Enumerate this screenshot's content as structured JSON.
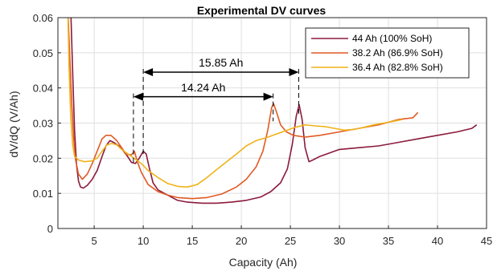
{
  "chart_data": {
    "type": "line",
    "title": "Experimental DV curves",
    "xlabel": "Capacity (Ah)",
    "ylabel": "dV/dQ (V/Ah)",
    "xlim": [
      1.3,
      45
    ],
    "ylim": [
      0,
      0.06
    ],
    "xticks": [
      5,
      10,
      15,
      20,
      25,
      30,
      35,
      40,
      45
    ],
    "yticks": [
      0,
      0.01,
      0.02,
      0.03,
      0.04,
      0.05,
      0.06
    ],
    "ytick_labels": [
      "0",
      "0.01",
      "0.02",
      "0.03",
      "0.04",
      "0.05",
      "0.06"
    ],
    "grid": true,
    "legend_position": "top-right",
    "series": [
      {
        "name": "44 Ah (100% SoH)",
        "color": "#8b1a3c",
        "points": [
          [
            2.6,
            0.063
          ],
          [
            2.8,
            0.045
          ],
          [
            3.0,
            0.028
          ],
          [
            3.2,
            0.018
          ],
          [
            3.4,
            0.0135
          ],
          [
            3.6,
            0.0118
          ],
          [
            3.9,
            0.0115
          ],
          [
            4.3,
            0.0123
          ],
          [
            4.8,
            0.014
          ],
          [
            5.3,
            0.0165
          ],
          [
            5.8,
            0.0205
          ],
          [
            6.2,
            0.0235
          ],
          [
            6.6,
            0.025
          ],
          [
            7.0,
            0.0245
          ],
          [
            7.5,
            0.0235
          ],
          [
            8.0,
            0.022
          ],
          [
            8.4,
            0.0205
          ],
          [
            8.8,
            0.0188
          ],
          [
            9.2,
            0.0185
          ],
          [
            9.6,
            0.02
          ],
          [
            10.0,
            0.022
          ],
          [
            10.3,
            0.0212
          ],
          [
            10.6,
            0.0175
          ],
          [
            11.0,
            0.013
          ],
          [
            11.5,
            0.011
          ],
          [
            12.5,
            0.0095
          ],
          [
            13.5,
            0.008
          ],
          [
            14.5,
            0.0075
          ],
          [
            16,
            0.0072
          ],
          [
            17.5,
            0.0072
          ],
          [
            19,
            0.0075
          ],
          [
            20.5,
            0.008
          ],
          [
            22,
            0.009
          ],
          [
            23,
            0.0105
          ],
          [
            24,
            0.013
          ],
          [
            24.7,
            0.017
          ],
          [
            25.2,
            0.024
          ],
          [
            25.6,
            0.032
          ],
          [
            25.9,
            0.0352
          ],
          [
            26.2,
            0.031
          ],
          [
            26.5,
            0.023
          ],
          [
            26.9,
            0.019
          ],
          [
            27.3,
            0.0195
          ],
          [
            28.0,
            0.0205
          ],
          [
            30,
            0.0225
          ],
          [
            32,
            0.023
          ],
          [
            34,
            0.0235
          ],
          [
            36,
            0.0245
          ],
          [
            38,
            0.0255
          ],
          [
            40,
            0.0265
          ],
          [
            42,
            0.0275
          ],
          [
            43.5,
            0.0285
          ],
          [
            44.0,
            0.0295
          ]
        ]
      },
      {
        "name": "38.2 Ah (86.9% SoH)",
        "color": "#e05a24",
        "points": [
          [
            2.3,
            0.063
          ],
          [
            2.5,
            0.05
          ],
          [
            2.7,
            0.036
          ],
          [
            2.9,
            0.026
          ],
          [
            3.1,
            0.0195
          ],
          [
            3.4,
            0.0155
          ],
          [
            3.8,
            0.014
          ],
          [
            4.3,
            0.0155
          ],
          [
            4.8,
            0.0185
          ],
          [
            5.3,
            0.022
          ],
          [
            5.8,
            0.0255
          ],
          [
            6.2,
            0.0265
          ],
          [
            6.7,
            0.0265
          ],
          [
            7.3,
            0.025
          ],
          [
            7.8,
            0.023
          ],
          [
            8.3,
            0.021
          ],
          [
            8.8,
            0.021
          ],
          [
            9.1,
            0.022
          ],
          [
            9.4,
            0.019
          ],
          [
            9.8,
            0.016
          ],
          [
            10.5,
            0.0125
          ],
          [
            11.5,
            0.0105
          ],
          [
            12.5,
            0.0095
          ],
          [
            13.5,
            0.0088
          ],
          [
            15,
            0.0085
          ],
          [
            16.5,
            0.0088
          ],
          [
            18,
            0.0098
          ],
          [
            19.5,
            0.0118
          ],
          [
            20.5,
            0.014
          ],
          [
            21.5,
            0.0175
          ],
          [
            22.2,
            0.022
          ],
          [
            22.7,
            0.028
          ],
          [
            23.1,
            0.0345
          ],
          [
            23.3,
            0.0355
          ],
          [
            23.6,
            0.033
          ],
          [
            24,
            0.0295
          ],
          [
            24.6,
            0.0275
          ],
          [
            25.3,
            0.0265
          ],
          [
            26.5,
            0.026
          ],
          [
            28,
            0.0265
          ],
          [
            30,
            0.0275
          ],
          [
            32,
            0.0285
          ],
          [
            34,
            0.0295
          ],
          [
            36,
            0.031
          ],
          [
            37.5,
            0.0315
          ],
          [
            38.0,
            0.033
          ]
        ]
      },
      {
        "name": "36.4 Ah (82.8% SoH)",
        "color": "#f0b21a",
        "points": [
          [
            2.3,
            0.063
          ],
          [
            2.45,
            0.045
          ],
          [
            2.6,
            0.032
          ],
          [
            2.8,
            0.024
          ],
          [
            3.0,
            0.0205
          ],
          [
            3.4,
            0.0195
          ],
          [
            4.0,
            0.019
          ],
          [
            4.7,
            0.0192
          ],
          [
            5.3,
            0.02
          ],
          [
            5.8,
            0.022
          ],
          [
            6.3,
            0.0238
          ],
          [
            6.8,
            0.0242
          ],
          [
            7.3,
            0.0238
          ],
          [
            7.8,
            0.0225
          ],
          [
            8.3,
            0.0215
          ],
          [
            8.8,
            0.0205
          ],
          [
            9.3,
            0.0195
          ],
          [
            9.8,
            0.0185
          ],
          [
            10.5,
            0.0165
          ],
          [
            11.5,
            0.0145
          ],
          [
            12.5,
            0.0128
          ],
          [
            13.5,
            0.012
          ],
          [
            14.5,
            0.0118
          ],
          [
            15.5,
            0.0125
          ],
          [
            16.5,
            0.0145
          ],
          [
            17.5,
            0.0168
          ],
          [
            18.5,
            0.019
          ],
          [
            19.5,
            0.0212
          ],
          [
            20.5,
            0.0235
          ],
          [
            21.5,
            0.025
          ],
          [
            22.5,
            0.0258
          ],
          [
            23.5,
            0.0268
          ],
          [
            24.5,
            0.0278
          ],
          [
            25.5,
            0.0288
          ],
          [
            26.5,
            0.0295
          ],
          [
            27.5,
            0.0292
          ],
          [
            28.5,
            0.029
          ],
          [
            29.5,
            0.0285
          ],
          [
            30.5,
            0.028
          ],
          [
            31.5,
            0.0282
          ],
          [
            32.5,
            0.0288
          ],
          [
            33.5,
            0.0295
          ],
          [
            34.5,
            0.03
          ],
          [
            35.5,
            0.0305
          ],
          [
            36.4,
            0.031
          ]
        ]
      }
    ],
    "annotations": [
      {
        "label": "15.85 Ah",
        "x_start": 10.0,
        "x_end": 25.85,
        "y": 0.0445,
        "label_y": 0.0472,
        "drop_to": 0.0205
      },
      {
        "label": "14.24 Ah",
        "x_start": 9.0,
        "x_end": 23.24,
        "y": 0.0375,
        "label_y": 0.0402,
        "drop_to": 0.0185
      }
    ]
  }
}
